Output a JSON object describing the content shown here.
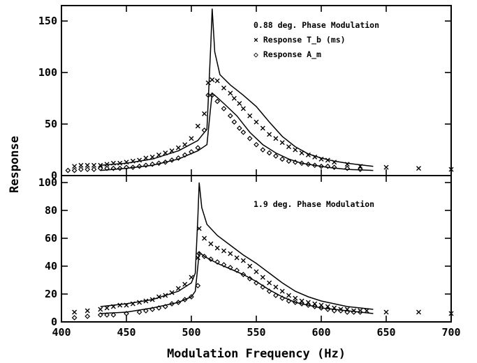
{
  "chart_data": [
    {
      "type": "scatter",
      "panel": "top",
      "title": "0.88 deg. Phase Modulation",
      "xlabel": "Modulation Frequency (Hz)",
      "ylabel": "Response",
      "xlim": [
        400,
        700
      ],
      "ylim": [
        0,
        165
      ],
      "x_ticks": [
        "400",
        "450",
        "500",
        "550",
        "600",
        "650",
        "700"
      ],
      "y_ticks": [
        "0",
        "50",
        "100",
        "150"
      ],
      "legend_position": "top-right",
      "grid": false,
      "series": [
        {
          "name": "× Response T_b (ms)",
          "marker": "x",
          "points": [
            [
              410,
              9
            ],
            [
              415,
              10
            ],
            [
              420,
              10
            ],
            [
              425,
              10
            ],
            [
              430,
              10
            ],
            [
              435,
              11
            ],
            [
              440,
              12
            ],
            [
              445,
              12
            ],
            [
              450,
              13
            ],
            [
              455,
              14
            ],
            [
              460,
              15
            ],
            [
              465,
              17
            ],
            [
              470,
              18
            ],
            [
              475,
              20
            ],
            [
              480,
              22
            ],
            [
              485,
              24
            ],
            [
              490,
              27
            ],
            [
              495,
              30
            ],
            [
              500,
              36
            ],
            [
              505,
              48
            ],
            [
              510,
              60
            ],
            [
              513,
              90
            ],
            [
              516,
              93
            ],
            [
              520,
              92
            ],
            [
              525,
              85
            ],
            [
              530,
              80
            ],
            [
              533,
              75
            ],
            [
              537,
              70
            ],
            [
              540,
              65
            ],
            [
              545,
              58
            ],
            [
              550,
              52
            ],
            [
              555,
              46
            ],
            [
              560,
              40
            ],
            [
              565,
              36
            ],
            [
              570,
              32
            ],
            [
              575,
              28
            ],
            [
              580,
              25
            ],
            [
              585,
              22
            ],
            [
              590,
              20
            ],
            [
              595,
              18
            ],
            [
              600,
              16
            ],
            [
              605,
              15
            ],
            [
              610,
              13
            ],
            [
              620,
              11
            ],
            [
              630,
              9
            ],
            [
              650,
              8
            ],
            [
              675,
              7
            ],
            [
              700,
              6
            ]
          ]
        },
        {
          "name": "◇ Response A_m",
          "marker": "diamond",
          "points": [
            [
              405,
              5
            ],
            [
              410,
              5
            ],
            [
              415,
              6
            ],
            [
              420,
              6
            ],
            [
              425,
              6
            ],
            [
              430,
              7
            ],
            [
              435,
              7
            ],
            [
              440,
              7
            ],
            [
              445,
              7
            ],
            [
              450,
              8
            ],
            [
              455,
              8
            ],
            [
              460,
              9
            ],
            [
              465,
              10
            ],
            [
              470,
              11
            ],
            [
              475,
              12
            ],
            [
              480,
              13
            ],
            [
              485,
              15
            ],
            [
              490,
              17
            ],
            [
              495,
              20
            ],
            [
              500,
              23
            ],
            [
              505,
              27
            ],
            [
              510,
              44
            ],
            [
              513,
              78
            ],
            [
              516,
              78
            ],
            [
              520,
              72
            ],
            [
              525,
              65
            ],
            [
              530,
              58
            ],
            [
              533,
              52
            ],
            [
              537,
              46
            ],
            [
              540,
              42
            ],
            [
              545,
              36
            ],
            [
              550,
              30
            ],
            [
              555,
              25
            ],
            [
              560,
              22
            ],
            [
              565,
              19
            ],
            [
              570,
              16
            ],
            [
              575,
              14
            ],
            [
              580,
              13
            ],
            [
              585,
              12
            ],
            [
              590,
              11
            ],
            [
              595,
              10
            ],
            [
              600,
              9
            ],
            [
              605,
              9
            ],
            [
              610,
              8
            ],
            [
              620,
              7
            ],
            [
              630,
              6
            ]
          ]
        },
        {
          "name": "",
          "marker": "line",
          "points": [
            [
              430,
              10
            ],
            [
              450,
              12
            ],
            [
              470,
              16
            ],
            [
              490,
              24
            ],
            [
              505,
              34
            ],
            [
              512,
              45
            ],
            [
              515,
              128
            ],
            [
              516,
              162
            ],
            [
              518,
              120
            ],
            [
              522,
              98
            ],
            [
              530,
              88
            ],
            [
              540,
              78
            ],
            [
              550,
              67
            ],
            [
              560,
              52
            ],
            [
              570,
              38
            ],
            [
              580,
              28
            ],
            [
              590,
              21
            ],
            [
              600,
              17
            ],
            [
              610,
              14
            ],
            [
              620,
              12
            ],
            [
              640,
              9
            ]
          ]
        },
        {
          "name": "",
          "marker": "line",
          "points": [
            [
              430,
              5
            ],
            [
              450,
              7
            ],
            [
              470,
              10
            ],
            [
              490,
              16
            ],
            [
              505,
              24
            ],
            [
              512,
              30
            ],
            [
              515,
              68
            ],
            [
              516,
              80
            ],
            [
              518,
              78
            ],
            [
              525,
              70
            ],
            [
              535,
              58
            ],
            [
              545,
              42
            ],
            [
              555,
              30
            ],
            [
              565,
              22
            ],
            [
              575,
              16
            ],
            [
              585,
              12
            ],
            [
              595,
              10
            ],
            [
              605,
              8
            ],
            [
              620,
              6
            ],
            [
              640,
              5
            ]
          ]
        }
      ]
    },
    {
      "type": "scatter",
      "panel": "bottom",
      "title": "1.9 deg. Phase Modulation",
      "xlabel": "Modulation Frequency (Hz)",
      "ylabel": "Response",
      "xlim": [
        400,
        700
      ],
      "ylim": [
        0,
        105
      ],
      "x_ticks": [
        "400",
        "450",
        "500",
        "550",
        "600",
        "650",
        "700"
      ],
      "y_ticks": [
        "0",
        "20",
        "40",
        "60",
        "80",
        "100"
      ],
      "grid": false,
      "series": [
        {
          "name": "× Response T_b (ms)",
          "marker": "x",
          "points": [
            [
              410,
              7
            ],
            [
              420,
              8
            ],
            [
              430,
              9
            ],
            [
              435,
              10
            ],
            [
              440,
              11
            ],
            [
              445,
              12
            ],
            [
              450,
              12
            ],
            [
              455,
              13
            ],
            [
              460,
              14
            ],
            [
              465,
              15
            ],
            [
              470,
              16
            ],
            [
              475,
              18
            ],
            [
              480,
              19
            ],
            [
              485,
              21
            ],
            [
              490,
              24
            ],
            [
              495,
              27
            ],
            [
              500,
              32
            ],
            [
              505,
              46
            ],
            [
              506,
              67
            ],
            [
              510,
              60
            ],
            [
              515,
              56
            ],
            [
              520,
              53
            ],
            [
              525,
              51
            ],
            [
              530,
              49
            ],
            [
              535,
              46
            ],
            [
              540,
              44
            ],
            [
              545,
              40
            ],
            [
              550,
              36
            ],
            [
              555,
              32
            ],
            [
              560,
              28
            ],
            [
              565,
              25
            ],
            [
              570,
              22
            ],
            [
              575,
              19
            ],
            [
              580,
              17
            ],
            [
              585,
              15
            ],
            [
              590,
              14
            ],
            [
              595,
              13
            ],
            [
              600,
              12
            ],
            [
              605,
              11
            ],
            [
              610,
              10
            ],
            [
              615,
              9
            ],
            [
              620,
              9
            ],
            [
              625,
              8
            ],
            [
              630,
              8
            ],
            [
              635,
              8
            ],
            [
              650,
              7
            ],
            [
              675,
              7
            ],
            [
              700,
              6
            ]
          ]
        },
        {
          "name": "◇ Response A_m",
          "marker": "diamond",
          "points": [
            [
              410,
              3
            ],
            [
              420,
              4
            ],
            [
              430,
              5
            ],
            [
              435,
              5
            ],
            [
              440,
              5
            ],
            [
              450,
              6
            ],
            [
              460,
              7
            ],
            [
              465,
              8
            ],
            [
              470,
              9
            ],
            [
              475,
              10
            ],
            [
              480,
              11
            ],
            [
              485,
              13
            ],
            [
              490,
              14
            ],
            [
              495,
              16
            ],
            [
              500,
              18
            ],
            [
              505,
              26
            ],
            [
              506,
              49
            ],
            [
              510,
              47
            ],
            [
              515,
              45
            ],
            [
              520,
              43
            ],
            [
              525,
              41
            ],
            [
              530,
              39
            ],
            [
              535,
              37
            ],
            [
              540,
              34
            ],
            [
              545,
              31
            ],
            [
              550,
              28
            ],
            [
              555,
              25
            ],
            [
              560,
              22
            ],
            [
              565,
              19
            ],
            [
              570,
              17
            ],
            [
              575,
              15
            ],
            [
              580,
              14
            ],
            [
              585,
              13
            ],
            [
              590,
              12
            ],
            [
              595,
              11
            ],
            [
              600,
              10
            ],
            [
              605,
              9
            ],
            [
              610,
              8
            ],
            [
              615,
              8
            ],
            [
              620,
              7
            ],
            [
              625,
              7
            ],
            [
              630,
              7
            ]
          ]
        },
        {
          "name": "",
          "marker": "line",
          "points": [
            [
              430,
              11
            ],
            [
              450,
              13
            ],
            [
              470,
              16
            ],
            [
              490,
              22
            ],
            [
              500,
              28
            ],
            [
              503,
              35
            ],
            [
              505,
              75
            ],
            [
              506,
              100
            ],
            [
              508,
              82
            ],
            [
              512,
              70
            ],
            [
              520,
              62
            ],
            [
              530,
              55
            ],
            [
              540,
              48
            ],
            [
              550,
              42
            ],
            [
              560,
              35
            ],
            [
              570,
              28
            ],
            [
              580,
              22
            ],
            [
              590,
              18
            ],
            [
              600,
              15
            ],
            [
              610,
              13
            ],
            [
              620,
              11
            ],
            [
              640,
              9
            ]
          ]
        },
        {
          "name": "",
          "marker": "line",
          "points": [
            [
              430,
              6
            ],
            [
              450,
              7
            ],
            [
              470,
              10
            ],
            [
              490,
              14
            ],
            [
              500,
              18
            ],
            [
              503,
              22
            ],
            [
              505,
              40
            ],
            [
              506,
              50
            ],
            [
              510,
              47
            ],
            [
              520,
              42
            ],
            [
              530,
              38
            ],
            [
              540,
              34
            ],
            [
              550,
              29
            ],
            [
              560,
              23
            ],
            [
              570,
              18
            ],
            [
              580,
              14
            ],
            [
              590,
              12
            ],
            [
              600,
              10
            ],
            [
              610,
              9
            ],
            [
              620,
              8
            ],
            [
              640,
              6
            ]
          ]
        }
      ]
    }
  ]
}
